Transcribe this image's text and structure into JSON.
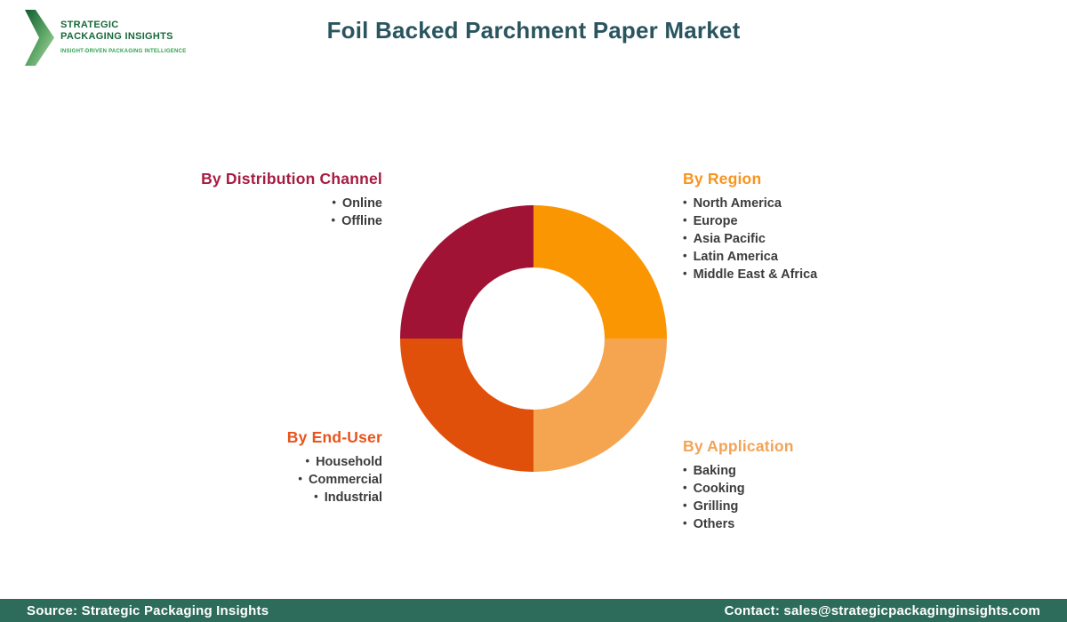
{
  "logo": {
    "line1": "STRATEGIC",
    "line2": "PACKAGING INSIGHTS",
    "tagline": "INSIGHT-DRIVEN PACKAGING INTELLIGENCE",
    "text_color": "#17693A",
    "tagline_color": "#2FA14E"
  },
  "title": "Foil Backed Parchment Paper Market",
  "title_color": "#2A555F",
  "chart_data": {
    "type": "pie",
    "subtype": "donut",
    "title": "Foil Backed Parchment Paper Market",
    "hole_radius_ratio": 0.53,
    "legend_position": "around-chart",
    "segments": [
      {
        "label": "By Region",
        "value": 25,
        "position": "top-right",
        "color": "#FB9603",
        "heading_color": "#F8941E",
        "items": [
          "North America",
          "Europe",
          "Asia Pacific",
          "Latin America",
          "Middle East & Africa"
        ]
      },
      {
        "label": "By Application",
        "value": 25,
        "position": "bottom-right",
        "color": "#F5A54F",
        "heading_color": "#F2A355",
        "items": [
          "Baking",
          "Cooking",
          "Grilling",
          "Others"
        ]
      },
      {
        "label": "By End-User",
        "value": 25,
        "position": "bottom-left",
        "color": "#E1500B",
        "heading_color": "#E8541B",
        "items": [
          "Household",
          "Commercial",
          "Industrial"
        ]
      },
      {
        "label": "By Distribution Channel",
        "value": 25,
        "position": "top-left",
        "color": "#A01335",
        "heading_color": "#A71C42",
        "items": [
          "Online",
          "Offline"
        ]
      }
    ]
  },
  "footer": {
    "source": "Source: Strategic Packaging Insights",
    "contact": "Contact: sales@strategicpackaginginsights.com",
    "background_color": "#2D6C5A",
    "text_color": "#FFFFFF"
  }
}
